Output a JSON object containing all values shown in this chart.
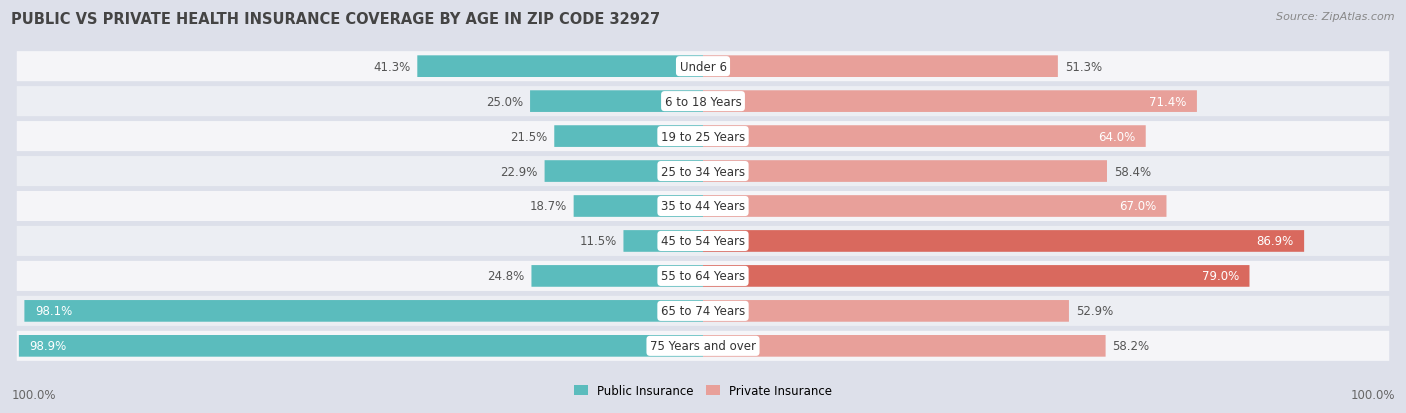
{
  "title": "PUBLIC VS PRIVATE HEALTH INSURANCE COVERAGE BY AGE IN ZIP CODE 32927",
  "source": "Source: ZipAtlas.com",
  "categories": [
    "Under 6",
    "6 to 18 Years",
    "19 to 25 Years",
    "25 to 34 Years",
    "35 to 44 Years",
    "45 to 54 Years",
    "55 to 64 Years",
    "65 to 74 Years",
    "75 Years and over"
  ],
  "public_values": [
    41.3,
    25.0,
    21.5,
    22.9,
    18.7,
    11.5,
    24.8,
    98.1,
    98.9
  ],
  "private_values": [
    51.3,
    71.4,
    64.0,
    58.4,
    67.0,
    86.9,
    79.0,
    52.9,
    58.2
  ],
  "public_color": "#5bbcbd",
  "private_color_light": "#e8a09a",
  "private_color_dark": "#d9695e",
  "private_threshold": 75.0,
  "background_color": "#dde0ea",
  "row_bg_color_even": "#f5f5f8",
  "row_bg_color_odd": "#eceef3",
  "title_fontsize": 10.5,
  "source_fontsize": 8,
  "label_fontsize": 8.5,
  "value_fontsize": 8.5,
  "max_value": 100.0,
  "legend_public": "Public Insurance",
  "legend_private": "Private Insurance"
}
